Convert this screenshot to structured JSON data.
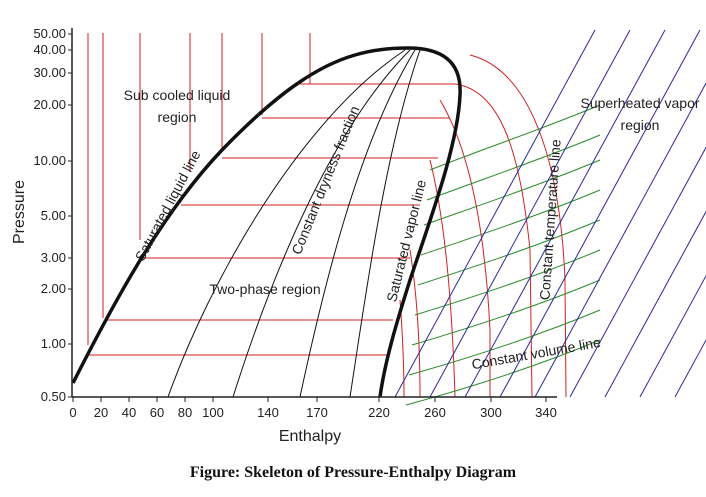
{
  "axes": {
    "y_title": "Pressure",
    "x_title": "Enthalpy",
    "y_ticks": [
      "50.00",
      "40.00",
      "30.00",
      "20.00",
      "10.00",
      "5.00",
      "3.00",
      "2.00",
      "1.00",
      "0.50"
    ],
    "y_values": [
      50,
      40,
      30,
      20,
      10,
      5,
      3,
      2,
      1,
      0.5
    ],
    "x_ticks": [
      "0",
      "20",
      "40",
      "60",
      "80",
      "100",
      "140",
      "170",
      "220",
      "260",
      "300",
      "340"
    ],
    "x_values": [
      0,
      20,
      40,
      60,
      80,
      100,
      140,
      170,
      220,
      260,
      300,
      340
    ]
  },
  "labels": {
    "subcooled_line1": "Sub cooled liquid",
    "subcooled_line2": "region",
    "superheated_line1": "Superheated vapor",
    "superheated_line2": "region",
    "saturated_liquid": "Saturated liquid line",
    "constant_dryness": "Constant dryness fraction",
    "saturated_vapor": "Saturated vapor line",
    "constant_temperature": "Constant temperature line",
    "two_phase": "Two-phase region",
    "constant_volume": "Constant volume line"
  },
  "caption": "Figure: Skeleton of Pressure-Enthalpy Diagram",
  "colors": {
    "saturation": "#111111",
    "dryness": "#111111",
    "isotherm": "#d22020",
    "isochore": "#2a8a2a",
    "entropy": "#2a2a9a"
  }
}
